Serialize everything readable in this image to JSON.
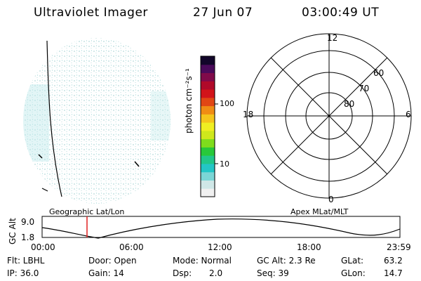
{
  "header": {
    "instrument": "Ultraviolet Imager",
    "date": "27 Jun 07",
    "time": "03:00:49 UT"
  },
  "colorbar": {
    "unit_label": "photon cm⁻²s⁻¹",
    "ticks": [
      "100",
      "10"
    ],
    "colors": [
      "#f0f0f0",
      "#cfe7e7",
      "#7bd6d6",
      "#23c6c6",
      "#21c78a",
      "#28c83a",
      "#7fdc1c",
      "#cfe81c",
      "#f0ef22",
      "#f5c51c",
      "#f08c14",
      "#e14614",
      "#d2141a",
      "#b00a2a",
      "#800a4a",
      "#4a0a5a",
      "#12062a"
    ]
  },
  "polar": {
    "labels_lat": [
      "60",
      "70",
      "80"
    ],
    "labels_mlt": [
      "12",
      "18",
      "6",
      "0"
    ]
  },
  "altitude": {
    "left_label": "Geographic Lat/Lon",
    "right_label": "Apex MLat/MLT",
    "axis_title": "GC Alt",
    "y_ticks": [
      "9.0",
      "1.8"
    ],
    "x_ticks": [
      "00:00",
      "06:00",
      "12:00",
      "18:00",
      "23:59"
    ],
    "marker_color": "#e02020"
  },
  "info": {
    "flt": "Flt: LBHL",
    "ip": "IP: 36.0",
    "door": "Door: Open",
    "gain": "Gain: 14",
    "mode": "Mode: Normal",
    "dsp_label": "Dsp:",
    "dsp_value": "2.0",
    "gc_alt": "GC Alt: 2.3 Re",
    "seq": "Seq: 39",
    "glat_label": "GLat:",
    "glat_value": "63.2",
    "glon_label": "GLon:",
    "glon_value": "14.7"
  }
}
